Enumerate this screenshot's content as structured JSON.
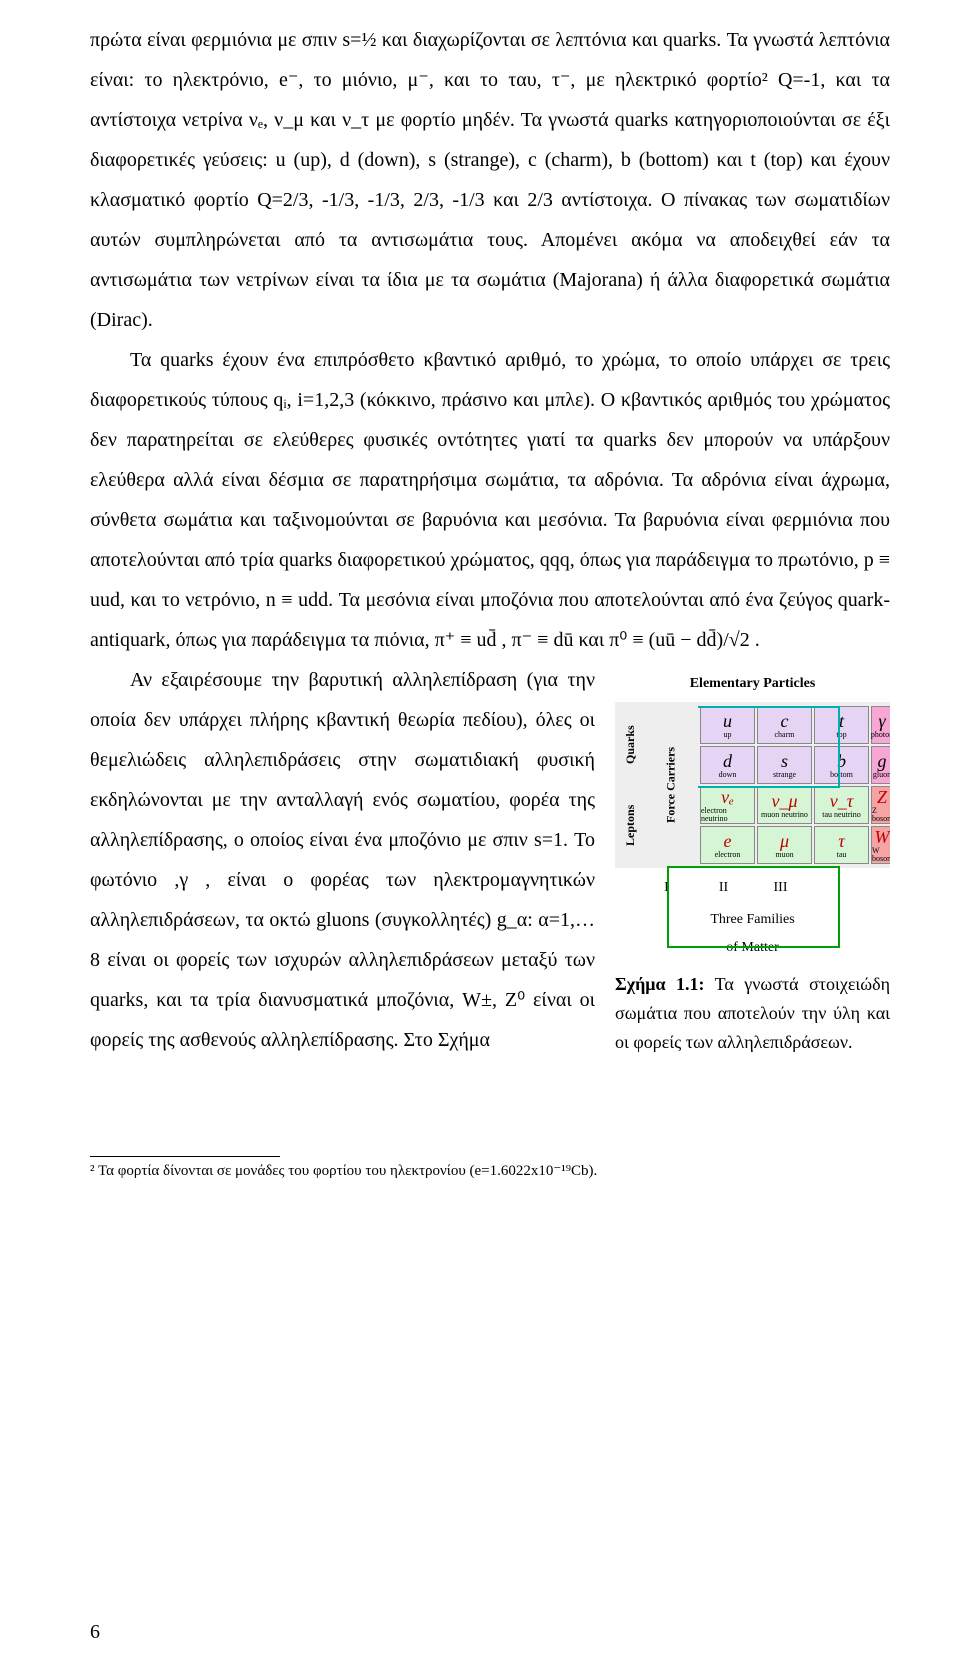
{
  "para1": "πρώτα είναι φερμιόνια με σπιν s=½ και διαχωρίζονται σε λεπτόνια και quarks. Τα γνωστά λεπτόνια είναι: το ηλεκτρόνιο, e⁻, το μιόνιο, μ⁻, και το ταυ, τ⁻, με ηλεκτρικό φορτίο² Q=-1, και τα αντίστοιχα νετρίνα νₑ, ν_μ και ν_τ με φορτίο μηδέν. Τα γνωστά quarks κατηγοριοποιούνται σε έξι διαφορετικές γεύσεις: u (up), d (down), s (strange), c (charm), b (bottom) και t (top) και έχουν κλασματικό φορτίο Q=2/3, -1/3, -1/3, 2/3, -1/3 και 2/3 αντίστοιχα. Ο πίνακας των σωματιδίων αυτών συμπληρώνεται από τα αντισωμάτια τους. Απομένει ακόμα να αποδειχθεί εάν τα αντισωμάτια των νετρίνων είναι τα ίδια με τα σωμάτια (Majorana) ή άλλα διαφορετικά σωμάτια (Dirac).",
  "para2": "Τα quarks έχουν ένα επιπρόσθετο κβαντικό αριθμό, το χρώμα, το οποίο υπάρχει σε τρεις διαφορετικούς τύπους qᵢ, i=1,2,3 (κόκκινο, πράσινο και μπλε). Ο κβαντικός αριθμός του χρώματος δεν παρατηρείται σε ελεύθερες φυσικές οντότητες γιατί τα quarks δεν μπορούν να υπάρξουν ελεύθερα αλλά είναι δέσμια σε παρατηρήσιμα σωμάτια, τα αδρόνια. Τα αδρόνια είναι άχρωμα, σύνθετα σωμάτια και ταξινομούνται σε βαρυόνια και μεσόνια. Τα βαρυόνια είναι φερμιόνια που αποτελούνται από τρία quarks διαφορετικού χρώματος, qqq, όπως για παράδειγμα το πρωτόνιο, p ≡ uud, και το νετρόνιο, n ≡ udd. Τα μεσόνια είναι μποζόνια που αποτελούνται από ένα ζεύγος quark-antiquark, όπως για παράδειγμα τα πιόνια, π⁺ ≡ ud̄ , π⁻ ≡ dū και π⁰ ≡ (uū − dd̄)/√2 .",
  "para3": "Αν εξαιρέσουμε την βαρυτική αλληλεπίδραση (για την οποία δεν υπάρχει πλήρης κβαντική θεωρία πεδίου), όλες οι θεμελιώδεις αλληλεπιδράσεις στην σωματιδιακή φυσική εκδηλώνονται με την ανταλλαγή ενός σωματίου, φορέα της αλληλεπίδρασης, ο οποίος είναι ένα μποζόνιο με σπιν s=1. Το φωτόνιο ,γ , είναι ο φορέας των ηλεκτρομαγνητικών αλληλεπιδράσεων, τα οκτώ gluons (συγκολλητές) g_α: α=1,…8 είναι οι φορείς των ισχυρών αλληλεπιδράσεων μεταξύ των quarks, και τα τρία διανυσματικά μποζόνια, W±, Z⁰ είναι οι φορείς της ασθενούς αλληλεπίδρασης. Στο Σχήμα",
  "figure": {
    "title": "Elementary Particles",
    "left_label_top": "Quarks",
    "left_label_bottom": "Leptons",
    "right_label": "Force Carriers",
    "cells": {
      "r1c1": {
        "sym": "u",
        "sub": "up"
      },
      "r1c2": {
        "sym": "c",
        "sub": "charm"
      },
      "r1c3": {
        "sym": "t",
        "sub": "top"
      },
      "r1c4": {
        "sym": "γ",
        "sub": "photon"
      },
      "r2c1": {
        "sym": "d",
        "sub": "down"
      },
      "r2c2": {
        "sym": "s",
        "sub": "strange"
      },
      "r2c3": {
        "sym": "b",
        "sub": "bottom"
      },
      "r2c4": {
        "sym": "g",
        "sub": "gluon"
      },
      "r3c1": {
        "sym": "νₑ",
        "sub": "electron neutrino"
      },
      "r3c2": {
        "sym": "ν_μ",
        "sub": "muon neutrino"
      },
      "r3c3": {
        "sym": "ν_τ",
        "sub": "tau neutrino"
      },
      "r3c4": {
        "sym": "Z",
        "sub": "Z boson"
      },
      "r4c1": {
        "sym": "e",
        "sub": "electron"
      },
      "r4c2": {
        "sym": "μ",
        "sub": "muon"
      },
      "r4c3": {
        "sym": "τ",
        "sub": "tau"
      },
      "r4c4": {
        "sym": "W",
        "sub": "W boson"
      }
    },
    "gen": [
      "I",
      "II",
      "III"
    ],
    "families": "Three Families\nof Matter",
    "caption_bold": "Σχήμα 1.1:",
    "caption_rest": " Τα γνωστά στοιχειώδη σωμάτια που αποτελούν την ύλη και οι φορείς των αλληλεπιδράσεων."
  },
  "footnote": "² Τα φορτία δίνονται σε μονάδες του φορτίου του ηλεκτρονίου (e=1.6022x10⁻¹⁹Cb).",
  "page_number": "6"
}
